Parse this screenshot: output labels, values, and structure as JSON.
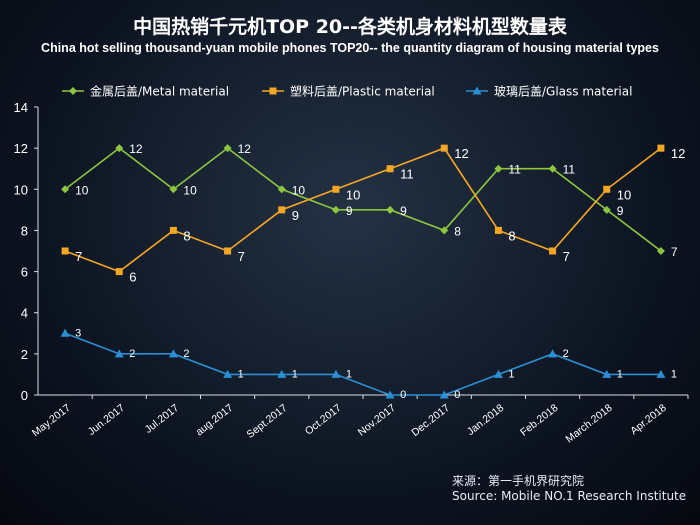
{
  "title": "中国热销千元机TOP 20--各类机身材料机型数量表",
  "subtitle": "China hot selling thousand-yuan mobile phones TOP20-- the quantity diagram of housing material types",
  "source": {
    "line1": "来源：第一手机界研究院",
    "line2": "Source: Mobile NO.1 Research Institute"
  },
  "chart_data": {
    "type": "line",
    "categories": [
      "May.2017",
      "Jun.2017",
      "Jul.2017",
      "aug.2017",
      "Sept.2017",
      "Oct.2017",
      "Nov.2017",
      "Dec.2017",
      "Jan.2018",
      "Feb.2018",
      "March.2018",
      "Apr.2018"
    ],
    "yticks": [
      "0",
      "2",
      "4",
      "6",
      "8",
      "10",
      "12",
      "14"
    ],
    "ylim": [
      0,
      14
    ],
    "legend_position": "top",
    "series": [
      {
        "name": "金属后盖/Metal material",
        "color": "#8cc63f",
        "marker": "diamond",
        "values": [
          10,
          12,
          10,
          12,
          10,
          9,
          9,
          8,
          11,
          11,
          9,
          7
        ]
      },
      {
        "name": "塑料后盖/Plastic material",
        "color": "#f5a623",
        "marker": "square",
        "values": [
          7,
          6,
          8,
          7,
          9,
          10,
          11,
          12,
          8,
          7,
          10,
          12
        ]
      },
      {
        "name": "玻璃后盖/Glass material",
        "color": "#2a8fd4",
        "marker": "triangle",
        "values": [
          3,
          2,
          2,
          1,
          1,
          1,
          0,
          0,
          1,
          2,
          1,
          1
        ]
      }
    ]
  }
}
